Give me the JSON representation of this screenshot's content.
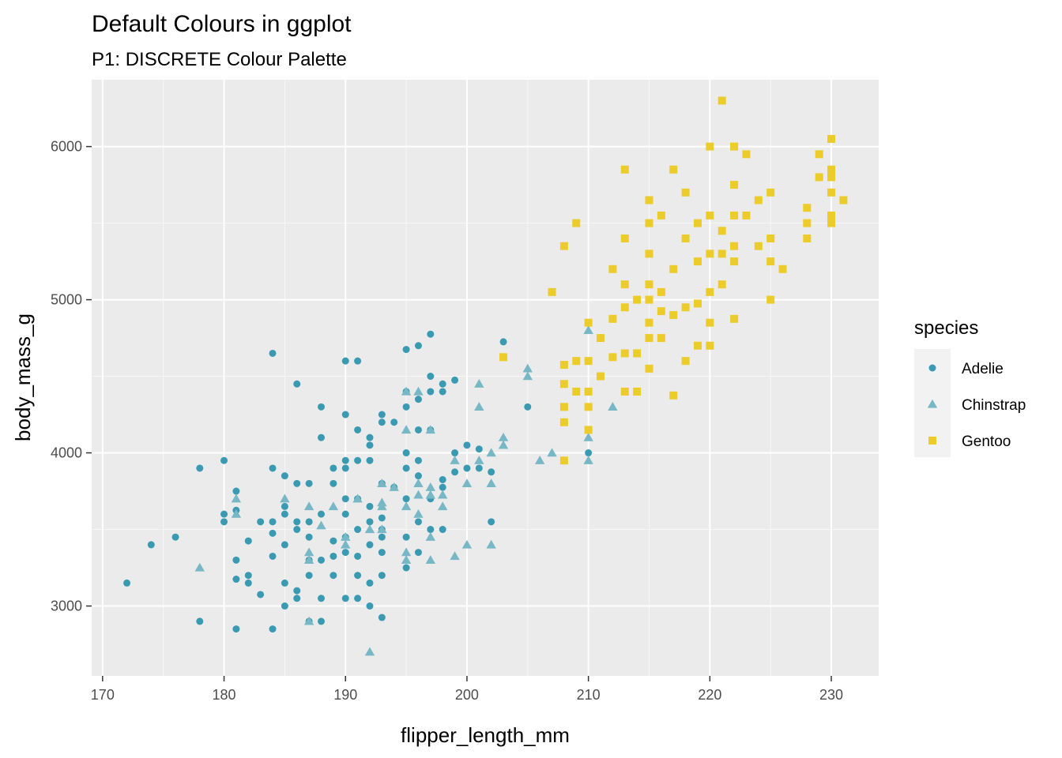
{
  "chart_data": {
    "type": "scatter",
    "title": "Default Colours in ggplot",
    "subtitle": "P1: DISCRETE Colour Palette",
    "xlabel": "flipper_length_mm",
    "ylabel": "body_mass_g",
    "xlim": [
      169.1,
      233.9
    ],
    "ylim": [
      2543.75,
      6436.25
    ],
    "x_ticks": [
      170,
      180,
      190,
      200,
      210,
      220,
      230
    ],
    "y_ticks": [
      3000,
      4000,
      5000,
      6000
    ],
    "grid": true,
    "legend": {
      "title": "species",
      "position": "right"
    },
    "series": [
      {
        "name": "Adelie",
        "shape": "circle",
        "color": "#3A9AB2",
        "points": [
          [
            172,
            3150
          ],
          [
            174,
            3400
          ],
          [
            176,
            3450
          ],
          [
            178,
            3900
          ],
          [
            178,
            2900
          ],
          [
            180,
            3950
          ],
          [
            180,
            3600
          ],
          [
            180,
            3550
          ],
          [
            181,
            3750
          ],
          [
            181,
            3625
          ],
          [
            181,
            3300
          ],
          [
            181,
            3175
          ],
          [
            181,
            2850
          ],
          [
            182,
            3425
          ],
          [
            182,
            3200
          ],
          [
            182,
            3150
          ],
          [
            183,
            3550
          ],
          [
            183,
            3075
          ],
          [
            184,
            4650
          ],
          [
            184,
            3900
          ],
          [
            184,
            3550
          ],
          [
            184,
            3475
          ],
          [
            184,
            3325
          ],
          [
            184,
            2850
          ],
          [
            185,
            3850
          ],
          [
            185,
            3650
          ],
          [
            185,
            3600
          ],
          [
            185,
            3400
          ],
          [
            185,
            3150
          ],
          [
            185,
            3000
          ],
          [
            186,
            4450
          ],
          [
            186,
            3800
          ],
          [
            186,
            3550
          ],
          [
            186,
            3500
          ],
          [
            186,
            3100
          ],
          [
            186,
            3050
          ],
          [
            187,
            3800
          ],
          [
            187,
            3550
          ],
          [
            187,
            3450
          ],
          [
            187,
            3300
          ],
          [
            187,
            3200
          ],
          [
            187,
            2900
          ],
          [
            188,
            4300
          ],
          [
            188,
            4100
          ],
          [
            188,
            3600
          ],
          [
            188,
            3300
          ],
          [
            188,
            3050
          ],
          [
            188,
            2900
          ],
          [
            189,
            3900
          ],
          [
            189,
            3800
          ],
          [
            189,
            3425
          ],
          [
            189,
            3325
          ],
          [
            189,
            3200
          ],
          [
            190,
            4600
          ],
          [
            190,
            4250
          ],
          [
            190,
            3950
          ],
          [
            190,
            3900
          ],
          [
            190,
            3700
          ],
          [
            190,
            3600
          ],
          [
            190,
            3450
          ],
          [
            190,
            3350
          ],
          [
            190,
            3050
          ],
          [
            191,
            4600
          ],
          [
            191,
            4150
          ],
          [
            191,
            3950
          ],
          [
            191,
            3700
          ],
          [
            191,
            3500
          ],
          [
            191,
            3325
          ],
          [
            191,
            3200
          ],
          [
            191,
            3050
          ],
          [
            192,
            4100
          ],
          [
            192,
            4050
          ],
          [
            192,
            3950
          ],
          [
            192,
            3650
          ],
          [
            192,
            3550
          ],
          [
            192,
            3400
          ],
          [
            192,
            3150
          ],
          [
            192,
            3000
          ],
          [
            193,
            4250
          ],
          [
            193,
            4200
          ],
          [
            193,
            3800
          ],
          [
            193,
            3575
          ],
          [
            193,
            3500
          ],
          [
            193,
            3450
          ],
          [
            193,
            3350
          ],
          [
            193,
            3200
          ],
          [
            193,
            2925
          ],
          [
            194,
            4200
          ],
          [
            194,
            3775
          ],
          [
            195,
            4675
          ],
          [
            195,
            4400
          ],
          [
            195,
            4300
          ],
          [
            195,
            4000
          ],
          [
            195,
            3900
          ],
          [
            195,
            3700
          ],
          [
            195,
            3450
          ],
          [
            195,
            3250
          ],
          [
            196,
            4700
          ],
          [
            196,
            4350
          ],
          [
            196,
            4150
          ],
          [
            196,
            3950
          ],
          [
            196,
            3850
          ],
          [
            196,
            3550
          ],
          [
            196,
            3350
          ],
          [
            197,
            4775
          ],
          [
            197,
            4500
          ],
          [
            197,
            4400
          ],
          [
            197,
            4150
          ],
          [
            197,
            3700
          ],
          [
            197,
            3500
          ],
          [
            198,
            4450
          ],
          [
            198,
            4400
          ],
          [
            198,
            3825
          ],
          [
            198,
            3775
          ],
          [
            198,
            3500
          ],
          [
            199,
            4475
          ],
          [
            199,
            4000
          ],
          [
            199,
            3875
          ],
          [
            200,
            4050
          ],
          [
            200,
            3900
          ],
          [
            201,
            4025
          ],
          [
            201,
            3900
          ],
          [
            202,
            3875
          ],
          [
            202,
            3550
          ],
          [
            203,
            4725
          ],
          [
            205,
            4300
          ],
          [
            210,
            4000
          ]
        ]
      },
      {
        "name": "Chinstrap",
        "shape": "triangle",
        "color": "#78B7C5",
        "points": [
          [
            178,
            3250
          ],
          [
            181,
            3700
          ],
          [
            181,
            3600
          ],
          [
            185,
            3700
          ],
          [
            187,
            3650
          ],
          [
            187,
            3350
          ],
          [
            187,
            3300
          ],
          [
            187,
            2900
          ],
          [
            188,
            3525
          ],
          [
            189,
            3650
          ],
          [
            190,
            3450
          ],
          [
            190,
            3400
          ],
          [
            191,
            3700
          ],
          [
            192,
            3500
          ],
          [
            192,
            2700
          ],
          [
            193,
            3800
          ],
          [
            193,
            3675
          ],
          [
            193,
            3650
          ],
          [
            193,
            3500
          ],
          [
            194,
            3775
          ],
          [
            195,
            4400
          ],
          [
            195,
            4150
          ],
          [
            195,
            3650
          ],
          [
            195,
            3350
          ],
          [
            195,
            3300
          ],
          [
            196,
            4400
          ],
          [
            196,
            3800
          ],
          [
            196,
            3725
          ],
          [
            196,
            3600
          ],
          [
            197,
            4150
          ],
          [
            197,
            3775
          ],
          [
            197,
            3725
          ],
          [
            197,
            3450
          ],
          [
            197,
            3300
          ],
          [
            198,
            3650
          ],
          [
            198,
            3725
          ],
          [
            199,
            3950
          ],
          [
            199,
            3325
          ],
          [
            200,
            3800
          ],
          [
            200,
            3400
          ],
          [
            201,
            4450
          ],
          [
            201,
            4300
          ],
          [
            201,
            3950
          ],
          [
            202,
            4000
          ],
          [
            202,
            3800
          ],
          [
            202,
            3400
          ],
          [
            203,
            4100
          ],
          [
            203,
            4050
          ],
          [
            205,
            4550
          ],
          [
            205,
            4500
          ],
          [
            206,
            3950
          ],
          [
            207,
            4000
          ],
          [
            210,
            4800
          ],
          [
            210,
            4100
          ],
          [
            210,
            3950
          ],
          [
            212,
            4300
          ]
        ]
      },
      {
        "name": "Gentoo",
        "shape": "square",
        "color": "#EBCC2A",
        "points": [
          [
            203,
            4625
          ],
          [
            207,
            5050
          ],
          [
            208,
            5350
          ],
          [
            208,
            4575
          ],
          [
            208,
            4450
          ],
          [
            208,
            4300
          ],
          [
            208,
            4200
          ],
          [
            208,
            3950
          ],
          [
            209,
            5500
          ],
          [
            209,
            4600
          ],
          [
            209,
            4400
          ],
          [
            210,
            4850
          ],
          [
            210,
            4600
          ],
          [
            210,
            4400
          ],
          [
            210,
            4300
          ],
          [
            210,
            4150
          ],
          [
            211,
            4750
          ],
          [
            211,
            4500
          ],
          [
            212,
            5200
          ],
          [
            212,
            4875
          ],
          [
            212,
            4625
          ],
          [
            213,
            5850
          ],
          [
            213,
            5400
          ],
          [
            213,
            5100
          ],
          [
            213,
            4950
          ],
          [
            213,
            4650
          ],
          [
            213,
            4400
          ],
          [
            214,
            5000
          ],
          [
            214,
            4650
          ],
          [
            214,
            4400
          ],
          [
            215,
            5650
          ],
          [
            215,
            5500
          ],
          [
            215,
            5300
          ],
          [
            215,
            5100
          ],
          [
            215,
            5000
          ],
          [
            215,
            4850
          ],
          [
            215,
            4750
          ],
          [
            215,
            4550
          ],
          [
            216,
            5550
          ],
          [
            216,
            5050
          ],
          [
            216,
            4925
          ],
          [
            216,
            4750
          ],
          [
            217,
            5850
          ],
          [
            217,
            5200
          ],
          [
            217,
            4900
          ],
          [
            217,
            4375
          ],
          [
            218,
            5700
          ],
          [
            218,
            5400
          ],
          [
            218,
            4950
          ],
          [
            218,
            4600
          ],
          [
            219,
            5500
          ],
          [
            219,
            5250
          ],
          [
            219,
            4975
          ],
          [
            219,
            4700
          ],
          [
            220,
            6000
          ],
          [
            220,
            5550
          ],
          [
            220,
            5300
          ],
          [
            220,
            5050
          ],
          [
            220,
            4850
          ],
          [
            220,
            4700
          ],
          [
            221,
            6300
          ],
          [
            221,
            5450
          ],
          [
            221,
            5300
          ],
          [
            221,
            5100
          ],
          [
            222,
            6000
          ],
          [
            222,
            5750
          ],
          [
            222,
            5550
          ],
          [
            222,
            5350
          ],
          [
            222,
            5250
          ],
          [
            222,
            4875
          ],
          [
            223,
            5950
          ],
          [
            223,
            5550
          ],
          [
            224,
            5650
          ],
          [
            224,
            5350
          ],
          [
            225,
            5700
          ],
          [
            225,
            5400
          ],
          [
            225,
            5250
          ],
          [
            225,
            5000
          ],
          [
            226,
            5200
          ],
          [
            228,
            5600
          ],
          [
            228,
            5500
          ],
          [
            228,
            5400
          ],
          [
            229,
            5950
          ],
          [
            229,
            5800
          ],
          [
            230,
            6050
          ],
          [
            230,
            5850
          ],
          [
            230,
            5800
          ],
          [
            230,
            5700
          ],
          [
            230,
            5550
          ],
          [
            230,
            5500
          ],
          [
            231,
            5650
          ]
        ]
      }
    ]
  }
}
